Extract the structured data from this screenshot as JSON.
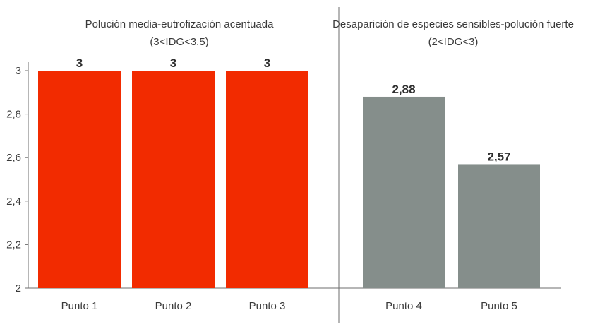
{
  "chart_data": {
    "type": "bar",
    "categories": [
      "Punto 1",
      "Punto 2",
      "Punto 3",
      "Punto 4",
      "Punto 5"
    ],
    "values": [
      3,
      3,
      3,
      2.88,
      2.57
    ],
    "value_labels": [
      "3",
      "3",
      "3",
      "2,88",
      "2,57"
    ],
    "groups": [
      {
        "title_line1": "Polución media-eutrofización acentuada",
        "title_line2": "(3<IDG<3.5)",
        "categories": [
          "Punto 1",
          "Punto 2",
          "Punto 3"
        ],
        "color": "#f22b00"
      },
      {
        "title_line1": "Desaparición de especies sensibles-polución fuerte",
        "title_line2": "(2<IDG<3)",
        "categories": [
          "Punto 4",
          "Punto 5"
        ],
        "color": "#858e8b"
      }
    ],
    "y_ticks": [
      2,
      2.2,
      2.4,
      2.6,
      2.8,
      3
    ],
    "y_tick_labels": [
      "2",
      "2,2",
      "2,4",
      "2,6",
      "2,8",
      "3"
    ],
    "ylim": [
      2,
      3
    ],
    "grid": false,
    "title": "",
    "xlabel": "",
    "ylabel": ""
  }
}
